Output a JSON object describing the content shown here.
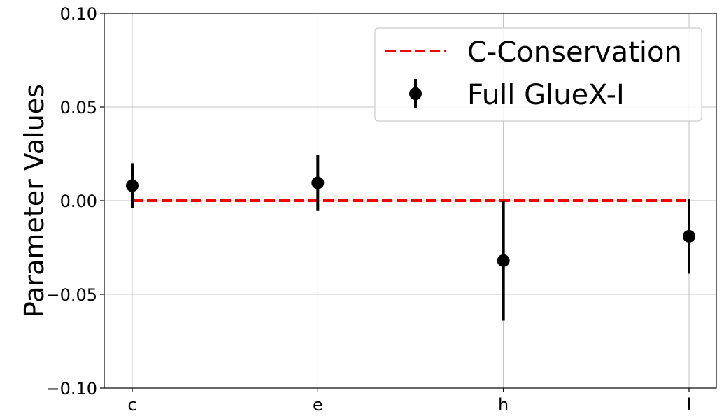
{
  "chart_data": {
    "type": "scatter",
    "title": "",
    "xlabel": "",
    "ylabel": "Parameter Values",
    "categories": [
      "c",
      "e",
      "h",
      "l"
    ],
    "ylim": [
      -0.1,
      0.1
    ],
    "yticks": [
      0.1,
      0.05,
      0.0,
      -0.05,
      -0.1
    ],
    "ytick_labels": [
      "0.10",
      "0.05",
      "0.00",
      "−0.05",
      "−0.10"
    ],
    "grid": true,
    "legend_position": "top-right",
    "series": [
      {
        "name": "C-Conservation",
        "kind": "dashed-line",
        "color": "#ff0000",
        "values": [
          0.0,
          0.0,
          0.0,
          0.0
        ]
      },
      {
        "name": "Full GlueX-I",
        "kind": "errorbar",
        "color": "#000000",
        "values": [
          0.008,
          0.0095,
          -0.032,
          -0.019
        ],
        "errors": [
          0.012,
          0.015,
          0.032,
          0.02
        ]
      }
    ]
  }
}
